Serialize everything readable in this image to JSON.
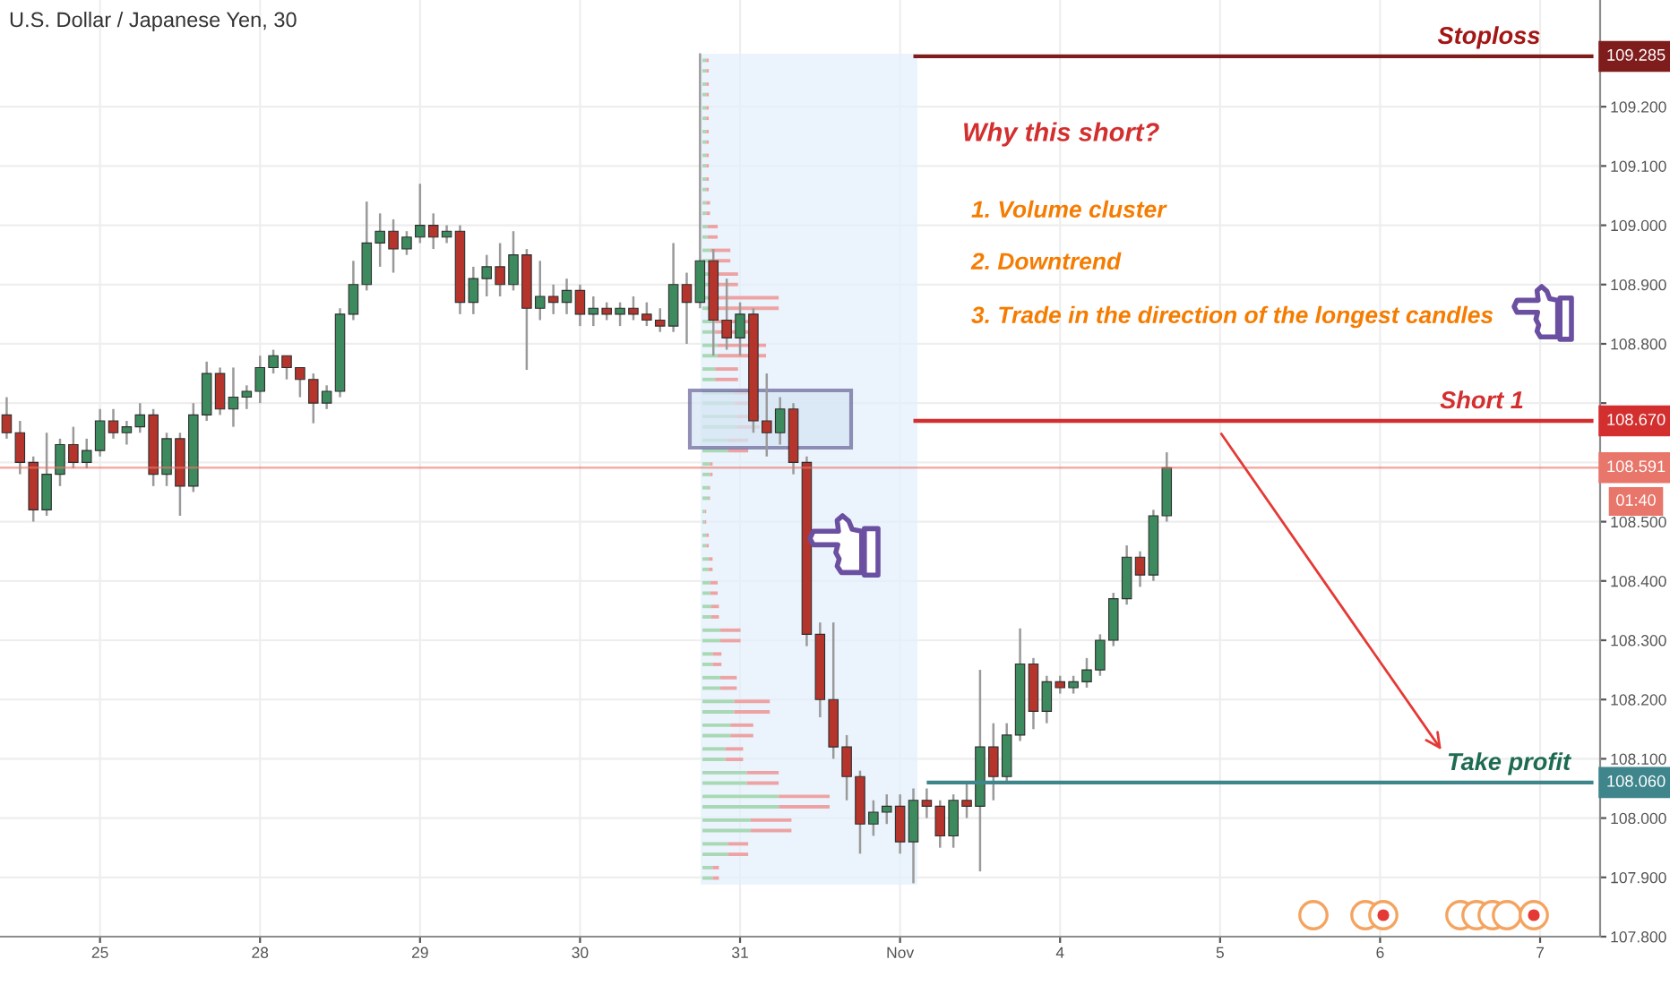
{
  "chart_data": {
    "type": "candlestick",
    "title": "U.S. Dollar / Japanese Yen, 30",
    "categories": [
      null,
      null,
      null,
      null,
      null,
      null,
      null,
      "25",
      null,
      null,
      null,
      null,
      null,
      null,
      null,
      null,
      null,
      null,
      null,
      "28",
      null,
      null,
      null,
      null,
      null,
      null,
      null,
      null,
      null,
      null,
      null,
      "29",
      null,
      null,
      null,
      null,
      null,
      null,
      null,
      null,
      null,
      null,
      null,
      "30",
      null,
      null,
      null,
      null,
      null,
      null,
      null,
      null,
      null,
      null,
      null,
      "31",
      null,
      null,
      null,
      null,
      null,
      null,
      null,
      null,
      null,
      null,
      null,
      "Nov",
      null,
      null,
      null,
      null,
      null,
      null,
      null,
      null,
      null,
      null,
      null,
      "4",
      null,
      null,
      null,
      null,
      null,
      null,
      null,
      null,
      null,
      null,
      null,
      "5",
      null,
      null,
      null,
      null,
      null,
      null,
      null,
      null,
      null,
      null,
      null,
      "6",
      null,
      null,
      null,
      null,
      null,
      null,
      null,
      null,
      null,
      null,
      null,
      "7",
      null,
      null,
      null,
      null
    ],
    "ohlc": [
      [
        108.68,
        108.71,
        108.64,
        108.65
      ],
      [
        108.65,
        108.67,
        108.58,
        108.6
      ],
      [
        108.6,
        108.61,
        108.5,
        108.52
      ],
      [
        108.52,
        108.65,
        108.51,
        108.58
      ],
      [
        108.58,
        108.64,
        108.56,
        108.63
      ],
      [
        108.63,
        108.66,
        108.59,
        108.6
      ],
      [
        108.6,
        108.64,
        108.59,
        108.62
      ],
      [
        108.62,
        108.69,
        108.61,
        108.67
      ],
      [
        108.67,
        108.69,
        108.64,
        108.65
      ],
      [
        108.65,
        108.67,
        108.63,
        108.66
      ],
      [
        108.66,
        108.7,
        108.65,
        108.68
      ],
      [
        108.68,
        108.69,
        108.56,
        108.58
      ],
      [
        108.58,
        108.65,
        108.56,
        108.64
      ],
      [
        108.64,
        108.65,
        108.51,
        108.56
      ],
      [
        108.56,
        108.7,
        108.55,
        108.68
      ],
      [
        108.68,
        108.77,
        108.67,
        108.75
      ],
      [
        108.75,
        108.76,
        108.68,
        108.69
      ],
      [
        108.69,
        108.76,
        108.66,
        108.71
      ],
      [
        108.71,
        108.73,
        108.69,
        108.72
      ],
      [
        108.72,
        108.78,
        108.7,
        108.76
      ],
      [
        108.76,
        108.79,
        108.75,
        108.78
      ],
      [
        108.78,
        108.78,
        108.74,
        108.76
      ],
      [
        108.76,
        108.76,
        108.71,
        108.74
      ],
      [
        108.74,
        108.75,
        108.666,
        108.7
      ],
      [
        108.7,
        108.73,
        108.69,
        108.72
      ],
      [
        108.72,
        108.86,
        108.71,
        108.85
      ],
      [
        108.85,
        108.94,
        108.84,
        108.9
      ],
      [
        108.9,
        109.04,
        108.89,
        108.97
      ],
      [
        108.97,
        109.02,
        108.93,
        108.99
      ],
      [
        108.99,
        109.01,
        108.92,
        108.96
      ],
      [
        108.96,
        108.99,
        108.95,
        108.98
      ],
      [
        108.98,
        109.07,
        108.97,
        109.0
      ],
      [
        109.0,
        109.02,
        108.96,
        108.98
      ],
      [
        108.98,
        109.0,
        108.97,
        108.99
      ],
      [
        108.99,
        109.0,
        108.85,
        108.87
      ],
      [
        108.87,
        108.93,
        108.85,
        108.91
      ],
      [
        108.91,
        108.95,
        108.88,
        108.93
      ],
      [
        108.93,
        108.97,
        108.88,
        108.9
      ],
      [
        108.9,
        108.99,
        108.89,
        108.95
      ],
      [
        108.95,
        108.96,
        108.756,
        108.86
      ],
      [
        108.86,
        108.94,
        108.84,
        108.88
      ],
      [
        108.88,
        108.9,
        108.85,
        108.87
      ],
      [
        108.87,
        108.91,
        108.85,
        108.89
      ],
      [
        108.89,
        108.9,
        108.83,
        108.85
      ],
      [
        108.85,
        108.88,
        108.83,
        108.86
      ],
      [
        108.86,
        108.87,
        108.84,
        108.85
      ],
      [
        108.85,
        108.87,
        108.83,
        108.86
      ],
      [
        108.86,
        108.88,
        108.84,
        108.85
      ],
      [
        108.85,
        108.87,
        108.83,
        108.84
      ],
      [
        108.84,
        108.86,
        108.82,
        108.83
      ],
      [
        108.83,
        108.97,
        108.82,
        108.9
      ],
      [
        108.9,
        108.92,
        108.8,
        108.87
      ],
      [
        108.87,
        109.29,
        108.86,
        108.94
      ],
      [
        108.94,
        108.96,
        108.78,
        108.84
      ],
      [
        108.84,
        108.91,
        108.79,
        108.81
      ],
      [
        108.81,
        108.87,
        108.78,
        108.85
      ],
      [
        108.85,
        108.86,
        108.65,
        108.67
      ],
      [
        108.67,
        108.75,
        108.61,
        108.65
      ],
      [
        108.65,
        108.71,
        108.63,
        108.69
      ],
      [
        108.69,
        108.7,
        108.58,
        108.6
      ],
      [
        108.6,
        108.61,
        108.29,
        108.31
      ],
      [
        108.31,
        108.33,
        108.17,
        108.2
      ],
      [
        108.2,
        108.33,
        108.1,
        108.12
      ],
      [
        108.12,
        108.14,
        108.03,
        108.07
      ],
      [
        108.07,
        108.08,
        107.94,
        107.99
      ],
      [
        107.99,
        108.03,
        107.97,
        108.01
      ],
      [
        108.01,
        108.04,
        107.99,
        108.02
      ],
      [
        108.02,
        108.04,
        107.94,
        107.96
      ],
      [
        107.96,
        108.05,
        107.89,
        108.03
      ],
      [
        108.03,
        108.05,
        108.0,
        108.02
      ],
      [
        108.02,
        108.03,
        107.95,
        107.97
      ],
      [
        107.97,
        108.04,
        107.95,
        108.03
      ],
      [
        108.03,
        108.06,
        108.0,
        108.02
      ],
      [
        108.02,
        108.25,
        107.91,
        108.12
      ],
      [
        108.12,
        108.16,
        108.03,
        108.07
      ],
      [
        108.07,
        108.16,
        108.06,
        108.14
      ],
      [
        108.14,
        108.32,
        108.13,
        108.26
      ],
      [
        108.26,
        108.27,
        108.15,
        108.18
      ],
      [
        108.18,
        108.24,
        108.16,
        108.23
      ],
      [
        108.23,
        108.24,
        108.21,
        108.22
      ],
      [
        108.22,
        108.24,
        108.21,
        108.23
      ],
      [
        108.23,
        108.27,
        108.22,
        108.25
      ],
      [
        108.25,
        108.31,
        108.24,
        108.3
      ],
      [
        108.3,
        108.38,
        108.29,
        108.37
      ],
      [
        108.37,
        108.46,
        108.36,
        108.44
      ],
      [
        108.44,
        108.45,
        108.39,
        108.41
      ],
      [
        108.41,
        108.52,
        108.4,
        108.51
      ],
      [
        108.51,
        108.617,
        108.5,
        108.591
      ],
      null,
      null,
      null,
      null,
      null,
      null,
      null,
      null,
      null,
      null,
      null,
      null,
      null,
      null,
      null,
      null,
      null,
      null,
      null,
      null,
      null,
      null,
      null,
      null,
      null,
      null,
      null,
      null,
      null,
      null,
      null,
      null
    ],
    "colors": [
      "#b5352c",
      "#b5352c",
      "#b5352c",
      "#3d8a5e",
      "#3d8a5e",
      "#b5352c",
      "#3d8a5e",
      "#3d8a5e",
      "#b5352c",
      "#3d8a5e",
      "#3d8a5e",
      "#b5352c",
      "#3d8a5e",
      "#b5352c",
      "#3d8a5e",
      "#3d8a5e",
      "#b5352c",
      "#3d8a5e",
      "#3d8a5e",
      "#3d8a5e",
      "#3d8a5e",
      "#b5352c",
      "#b5352c",
      "#b5352c",
      "#3d8a5e",
      "#3d8a5e",
      "#3d8a5e",
      "#3d8a5e",
      "#3d8a5e",
      "#b5352c",
      "#3d8a5e",
      "#3d8a5e",
      "#b5352c",
      "#3d8a5e",
      "#b5352c",
      "#3d8a5e",
      "#3d8a5e",
      "#b5352c",
      "#3d8a5e",
      "#b5352c",
      "#3d8a5e",
      "#b5352c",
      "#3d8a5e",
      "#b5352c",
      "#3d8a5e",
      "#b5352c",
      "#3d8a5e",
      "#b5352c",
      "#b5352c",
      "#b5352c",
      "#3d8a5e",
      "#b5352c",
      "#3d8a5e",
      "#b5352c",
      "#b5352c",
      "#3d8a5e",
      "#b5352c",
      "#b5352c",
      "#3d8a5e",
      "#b5352c",
      "#b5352c",
      "#b5352c",
      "#b5352c",
      "#b5352c",
      "#b5352c",
      "#3d8a5e",
      "#3d8a5e",
      "#b5352c",
      "#3d8a5e",
      "#b5352c",
      "#b5352c",
      "#3d8a5e",
      "#b5352c",
      "#3d8a5e",
      "#b5352c",
      "#3d8a5e",
      "#3d8a5e",
      "#b5352c",
      "#3d8a5e",
      "#b5352c",
      "#3d8a5e",
      "#3d8a5e",
      "#3d8a5e",
      "#3d8a5e",
      "#3d8a5e",
      "#b5352c",
      "#3d8a5e",
      "#3d8a5e",
      null,
      null,
      null,
      null,
      null,
      null,
      null,
      null,
      null,
      null,
      null,
      null,
      null,
      null,
      null,
      null,
      null,
      null,
      null,
      null,
      null,
      null,
      null,
      null,
      null,
      null,
      null,
      null,
      null,
      null,
      null,
      null
    ],
    "series": [
      {
        "type": "line",
        "name": "Stoploss",
        "color": "#7f1d1d",
        "values": [
          null,
          null,
          null,
          null,
          null,
          null,
          null,
          null,
          null,
          null,
          null,
          null,
          null,
          null,
          null,
          null,
          null,
          null,
          null,
          null,
          null,
          null,
          null,
          null,
          null,
          null,
          null,
          null,
          null,
          null,
          null,
          null,
          null,
          null,
          null,
          null,
          null,
          null,
          null,
          null,
          null,
          null,
          null,
          null,
          null,
          null,
          null,
          null,
          null,
          null,
          null,
          null,
          null,
          null,
          null,
          null,
          null,
          null,
          null,
          null,
          null,
          null,
          null,
          null,
          null,
          null,
          null,
          null,
          109.285,
          109.285,
          109.285,
          109.285,
          109.285,
          109.285,
          109.285,
          109.285,
          109.285,
          109.285,
          109.285,
          109.285,
          109.285,
          109.285,
          109.285,
          109.285,
          109.285,
          109.285,
          109.285,
          109.285,
          109.285,
          109.285,
          109.285,
          109.285,
          109.285,
          109.285,
          109.285,
          109.285,
          109.285,
          109.285,
          109.285,
          109.285,
          109.285,
          109.285,
          109.285,
          109.285,
          109.285,
          109.285,
          109.285,
          109.285,
          109.285,
          109.285,
          109.285,
          109.285,
          109.285,
          109.285,
          109.285,
          109.285,
          109.285,
          109.285,
          109.285,
          109.285
        ],
        "value_labels": [
          null,
          null,
          null,
          null,
          null,
          null,
          null,
          null,
          null,
          null,
          null,
          null,
          null,
          null,
          null,
          null,
          null,
          null,
          null,
          null,
          null,
          null,
          null,
          null,
          null,
          null,
          null,
          null,
          null,
          null,
          null,
          null,
          null,
          null,
          null,
          null,
          null,
          null,
          null,
          null,
          null,
          null,
          null,
          null,
          null,
          null,
          null,
          null,
          null,
          null,
          null,
          null,
          null,
          null,
          null,
          null,
          null,
          null,
          null,
          null,
          null,
          null,
          null,
          null,
          null,
          null,
          null,
          null,
          null,
          null,
          null,
          null,
          null,
          null,
          null,
          null,
          null,
          null,
          null,
          null,
          null,
          null,
          null,
          null,
          null,
          null,
          null,
          null,
          null,
          null,
          null,
          null,
          null,
          null,
          null,
          null,
          null,
          null,
          null,
          null,
          null,
          null,
          null,
          null,
          null,
          null,
          null,
          null,
          null,
          null,
          null,
          null,
          null,
          null,
          null,
          null,
          null,
          null,
          null,
          "109.285"
        ]
      },
      {
        "type": "line",
        "name": "Short 1",
        "color": "#d32f2f",
        "values": [
          null,
          null,
          null,
          null,
          null,
          null,
          null,
          null,
          null,
          null,
          null,
          null,
          null,
          null,
          null,
          null,
          null,
          null,
          null,
          null,
          null,
          null,
          null,
          null,
          null,
          null,
          null,
          null,
          null,
          null,
          null,
          null,
          null,
          null,
          null,
          null,
          null,
          null,
          null,
          null,
          null,
          null,
          null,
          null,
          null,
          null,
          null,
          null,
          null,
          null,
          null,
          null,
          null,
          null,
          null,
          null,
          null,
          null,
          null,
          null,
          null,
          null,
          null,
          null,
          null,
          null,
          null,
          null,
          108.67,
          108.67,
          108.67,
          108.67,
          108.67,
          108.67,
          108.67,
          108.67,
          108.67,
          108.67,
          108.67,
          108.67,
          108.67,
          108.67,
          108.67,
          108.67,
          108.67,
          108.67,
          108.67,
          108.67,
          108.67,
          108.67,
          108.67,
          108.67,
          108.67,
          108.67,
          108.67,
          108.67,
          108.67,
          108.67,
          108.67,
          108.67,
          108.67,
          108.67,
          108.67,
          108.67,
          108.67,
          108.67,
          108.67,
          108.67,
          108.67,
          108.67,
          108.67,
          108.67,
          108.67,
          108.67,
          108.67,
          108.67,
          108.67,
          108.67,
          108.67,
          108.67
        ],
        "value_labels": [
          null,
          null,
          null,
          null,
          null,
          null,
          null,
          null,
          null,
          null,
          null,
          null,
          null,
          null,
          null,
          null,
          null,
          null,
          null,
          null,
          null,
          null,
          null,
          null,
          null,
          null,
          null,
          null,
          null,
          null,
          null,
          null,
          null,
          null,
          null,
          null,
          null,
          null,
          null,
          null,
          null,
          null,
          null,
          null,
          null,
          null,
          null,
          null,
          null,
          null,
          null,
          null,
          null,
          null,
          null,
          null,
          null,
          null,
          null,
          null,
          null,
          null,
          null,
          null,
          null,
          null,
          null,
          null,
          null,
          null,
          null,
          null,
          null,
          null,
          null,
          null,
          null,
          null,
          null,
          null,
          null,
          null,
          null,
          null,
          null,
          null,
          null,
          null,
          null,
          null,
          null,
          null,
          null,
          null,
          null,
          null,
          null,
          null,
          null,
          null,
          null,
          null,
          null,
          null,
          null,
          null,
          null,
          null,
          null,
          null,
          null,
          null,
          null,
          null,
          null,
          null,
          null,
          null,
          null,
          "108.670"
        ]
      },
      {
        "type": "line",
        "name": "Take profit",
        "color": "#3f858c",
        "values": [
          null,
          null,
          null,
          null,
          null,
          null,
          null,
          null,
          null,
          null,
          null,
          null,
          null,
          null,
          null,
          null,
          null,
          null,
          null,
          null,
          null,
          null,
          null,
          null,
          null,
          null,
          null,
          null,
          null,
          null,
          null,
          null,
          null,
          null,
          null,
          null,
          null,
          null,
          null,
          null,
          null,
          null,
          null,
          null,
          null,
          null,
          null,
          null,
          null,
          null,
          null,
          null,
          null,
          null,
          null,
          null,
          null,
          null,
          null,
          null,
          null,
          null,
          null,
          null,
          null,
          null,
          null,
          null,
          null,
          108.06,
          108.06,
          108.06,
          108.06,
          108.06,
          108.06,
          108.06,
          108.06,
          108.06,
          108.06,
          108.06,
          108.06,
          108.06,
          108.06,
          108.06,
          108.06,
          108.06,
          108.06,
          108.06,
          108.06,
          108.06,
          108.06,
          108.06,
          108.06,
          108.06,
          108.06,
          108.06,
          108.06,
          108.06,
          108.06,
          108.06,
          108.06,
          108.06,
          108.06,
          108.06,
          108.06,
          108.06,
          108.06,
          108.06,
          108.06,
          108.06,
          108.06,
          108.06,
          108.06,
          108.06,
          108.06,
          108.06,
          108.06,
          108.06,
          108.06,
          108.06
        ],
        "value_labels": [
          null,
          null,
          null,
          null,
          null,
          null,
          null,
          null,
          null,
          null,
          null,
          null,
          null,
          null,
          null,
          null,
          null,
          null,
          null,
          null,
          null,
          null,
          null,
          null,
          null,
          null,
          null,
          null,
          null,
          null,
          null,
          null,
          null,
          null,
          null,
          null,
          null,
          null,
          null,
          null,
          null,
          null,
          null,
          null,
          null,
          null,
          null,
          null,
          null,
          null,
          null,
          null,
          null,
          null,
          null,
          null,
          null,
          null,
          null,
          null,
          null,
          null,
          null,
          null,
          null,
          null,
          null,
          null,
          null,
          null,
          null,
          null,
          null,
          null,
          null,
          null,
          null,
          null,
          null,
          null,
          null,
          null,
          null,
          null,
          null,
          null,
          null,
          null,
          null,
          null,
          null,
          null,
          null,
          null,
          null,
          null,
          null,
          null,
          null,
          null,
          null,
          null,
          null,
          null,
          null,
          null,
          null,
          null,
          null,
          null,
          null,
          null,
          null,
          null,
          null,
          null,
          null,
          null,
          null,
          "108.060"
        ]
      }
    ],
    "ylim": [
      107.8,
      109.38
    ],
    "yticks": [
      {
        "value": 107.8,
        "label": "107.800"
      },
      {
        "value": 107.9,
        "label": "107.900"
      },
      {
        "value": 108.0,
        "label": "108.000"
      },
      {
        "value": 108.1,
        "label": "108.100"
      },
      {
        "value": 108.2,
        "label": "108.200"
      },
      {
        "value": 108.3,
        "label": "108.300"
      },
      {
        "value": 108.4,
        "label": "108.400"
      },
      {
        "value": 108.5,
        "label": "108.500"
      },
      {
        "value": 108.6,
        "label": null
      },
      {
        "value": 108.7,
        "label": null
      },
      {
        "value": 108.8,
        "label": "108.800"
      },
      {
        "value": 108.9,
        "label": "108.900"
      },
      {
        "value": 109.0,
        "label": "109.000"
      },
      {
        "value": 109.1,
        "label": "109.100"
      },
      {
        "value": 109.2,
        "label": "109.200"
      }
    ],
    "grid": true,
    "ref_lines": [
      {
        "axis": "y",
        "value": 108.591,
        "label": "108.591",
        "color": "#e8766b"
      }
    ],
    "annotations": [
      "Why this short?",
      "1. Volume cluster",
      "2. Downtrend",
      "3. Trade in the direction of the longest candles",
      "01:40"
    ]
  }
}
